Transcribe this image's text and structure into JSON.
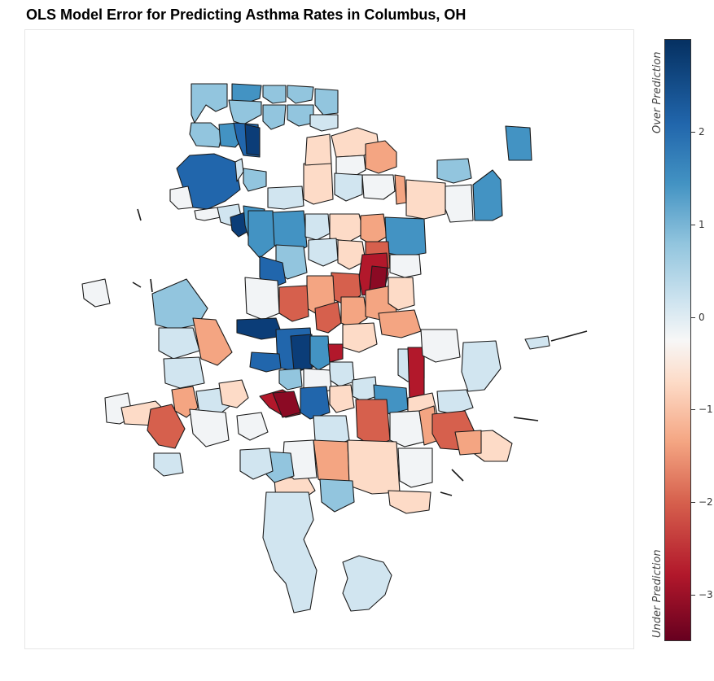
{
  "title": "OLS Model Error for Predicting Asthma Rates in Columbus, OH",
  "colorbar": {
    "colormap": "RdBu",
    "range": [
      -3.5,
      3
    ],
    "ticks": [
      {
        "value": 2,
        "label": "2"
      },
      {
        "value": 1,
        "label": "1"
      },
      {
        "value": 0,
        "label": "0"
      },
      {
        "value": -1,
        "label": "−1"
      },
      {
        "value": -2,
        "label": "−2"
      },
      {
        "value": -3,
        "label": "−3"
      }
    ],
    "top_note": "Over Prediction",
    "bottom_note": "Under Prediction"
  },
  "colors": {
    "darkblue": "#2166ac",
    "midblue": "#4393c3",
    "lightblue": "#92c5de",
    "paleblue": "#d1e5f0",
    "neutral": "#f2f4f6",
    "palered": "#fddbc7",
    "lightred": "#f4a582",
    "midred": "#d6604d",
    "darkred": "#b2182b",
    "deepred": "#8b0a24",
    "navy": "#0b3d78",
    "outline": "#1a1a1a"
  }
}
